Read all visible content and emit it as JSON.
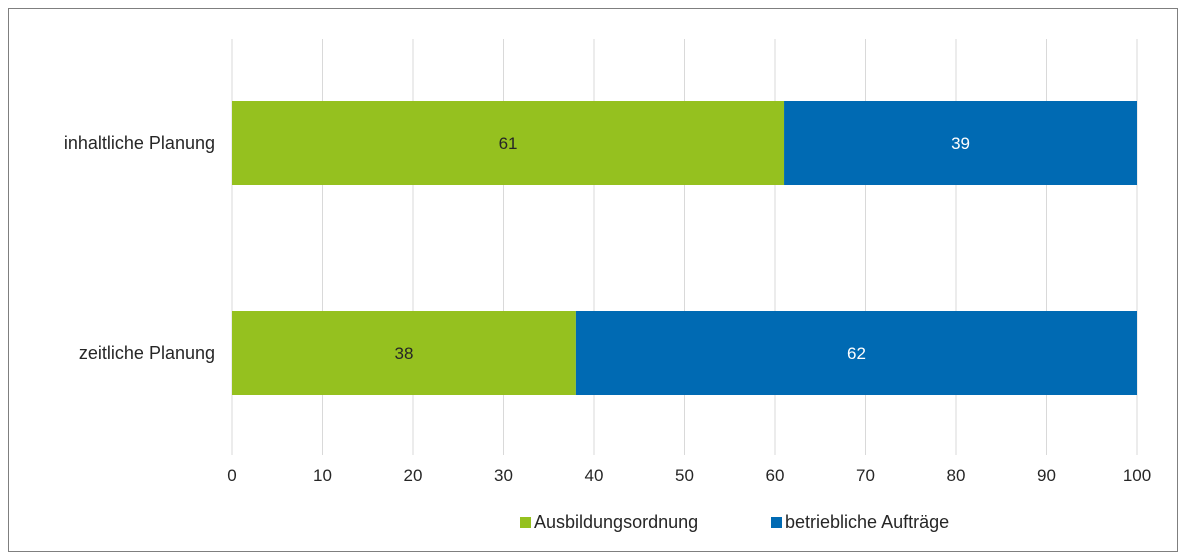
{
  "chart_data": {
    "type": "bar",
    "orientation": "horizontal",
    "stacked": true,
    "categories": [
      "inhaltliche Planung",
      "zeitliche Planung"
    ],
    "series": [
      {
        "name": "Ausbildungsordnung",
        "values": [
          61,
          38
        ],
        "color": "#95c11f",
        "label_color": "#262626"
      },
      {
        "name": "betriebliche Aufträge",
        "values": [
          39,
          62
        ],
        "color": "#006ab3",
        "label_color": "#ffffff"
      }
    ],
    "xlim": [
      0,
      100
    ],
    "xticks": [
      0,
      10,
      20,
      30,
      40,
      50,
      60,
      70,
      80,
      90,
      100
    ],
    "grid": true,
    "legend_position": "bottom",
    "title": "",
    "xlabel": "",
    "ylabel": ""
  }
}
